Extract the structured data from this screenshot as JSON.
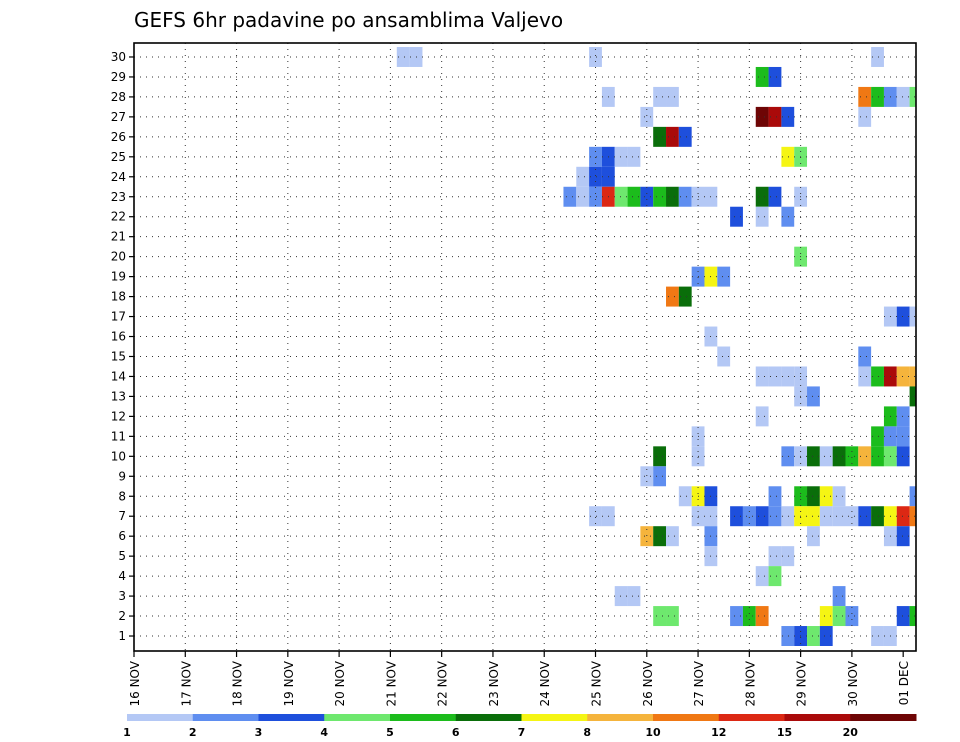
{
  "chart_data": {
    "type": "heatmap",
    "title": "GEFS 6hr padavine po ansamblima Valjevo",
    "xlabel": "",
    "ylabel": "",
    "x_ticks": [
      "16 NOV",
      "17 NOV",
      "18 NOV",
      "19 NOV",
      "20 NOV",
      "21 NOV",
      "22 NOV",
      "23 NOV",
      "24 NOV",
      "25 NOV",
      "26 NOV",
      "27 NOV",
      "28 NOV",
      "29 NOV",
      "30 NOV",
      "01 DEC"
    ],
    "y_ticks": [
      1,
      2,
      3,
      4,
      5,
      6,
      7,
      8,
      9,
      10,
      11,
      12,
      13,
      14,
      15,
      16,
      17,
      18,
      19,
      20,
      21,
      22,
      23,
      24,
      25,
      26,
      27,
      28,
      29,
      30
    ],
    "steps_per_day": 4,
    "x_range_steps": [
      0,
      61
    ],
    "grid": true,
    "legend_position": "bottom",
    "legend_levels": [
      "1",
      "2",
      "3",
      "4",
      "5",
      "6",
      "7",
      "8",
      "10",
      "12",
      "15",
      "20"
    ],
    "legend_colors": [
      "#b4c8f5",
      "#5f8ef0",
      "#1e4fdc",
      "#6ee86e",
      "#1cbc1c",
      "#0a6e0a",
      "#f5f514",
      "#f5b43c",
      "#f07814",
      "#dc2814",
      "#aa0a0a",
      "#6e0505"
    ],
    "cells_format": "[member, time_step_6h_from_16_NOV_00z, color_index]",
    "cells": [
      [
        30,
        21,
        0
      ],
      [
        30,
        22,
        0
      ],
      [
        30,
        36,
        0
      ],
      [
        30,
        58,
        0
      ],
      [
        29,
        49,
        4
      ],
      [
        29,
        50,
        2
      ],
      [
        28,
        37,
        0
      ],
      [
        28,
        41,
        0
      ],
      [
        28,
        42,
        0
      ],
      [
        28,
        57,
        8
      ],
      [
        28,
        58,
        4
      ],
      [
        28,
        59,
        1
      ],
      [
        28,
        60,
        0
      ],
      [
        28,
        61,
        3
      ],
      [
        27,
        40,
        0
      ],
      [
        27,
        49,
        11
      ],
      [
        27,
        50,
        10
      ],
      [
        27,
        51,
        2
      ],
      [
        27,
        57,
        0
      ],
      [
        26,
        41,
        5
      ],
      [
        26,
        42,
        10
      ],
      [
        26,
        43,
        2
      ],
      [
        25,
        36,
        1
      ],
      [
        25,
        37,
        2
      ],
      [
        25,
        38,
        0
      ],
      [
        25,
        39,
        0
      ],
      [
        25,
        51,
        6
      ],
      [
        25,
        52,
        3
      ],
      [
        24,
        35,
        0
      ],
      [
        24,
        36,
        2
      ],
      [
        24,
        37,
        2
      ],
      [
        23,
        34,
        1
      ],
      [
        23,
        35,
        0
      ],
      [
        23,
        36,
        1
      ],
      [
        23,
        37,
        9
      ],
      [
        23,
        38,
        3
      ],
      [
        23,
        39,
        4
      ],
      [
        23,
        40,
        2
      ],
      [
        23,
        41,
        4
      ],
      [
        23,
        42,
        5
      ],
      [
        23,
        43,
        1
      ],
      [
        23,
        44,
        0
      ],
      [
        23,
        45,
        0
      ],
      [
        23,
        49,
        5
      ],
      [
        23,
        50,
        2
      ],
      [
        23,
        52,
        0
      ],
      [
        22,
        47,
        2
      ],
      [
        22,
        49,
        0
      ],
      [
        22,
        51,
        1
      ],
      [
        20,
        52,
        3
      ],
      [
        19,
        44,
        1
      ],
      [
        19,
        45,
        6
      ],
      [
        19,
        46,
        1
      ],
      [
        18,
        42,
        8
      ],
      [
        18,
        43,
        5
      ],
      [
        17,
        59,
        0
      ],
      [
        17,
        60,
        2
      ],
      [
        17,
        61,
        0
      ],
      [
        16,
        45,
        0
      ],
      [
        15,
        46,
        0
      ],
      [
        15,
        57,
        1
      ],
      [
        14,
        49,
        0
      ],
      [
        14,
        50,
        0
      ],
      [
        14,
        51,
        0
      ],
      [
        14,
        52,
        0
      ],
      [
        14,
        57,
        0
      ],
      [
        14,
        58,
        4
      ],
      [
        14,
        59,
        10
      ],
      [
        14,
        60,
        7
      ],
      [
        14,
        61,
        7
      ],
      [
        13,
        52,
        0
      ],
      [
        13,
        53,
        1
      ],
      [
        13,
        61,
        5
      ],
      [
        12,
        49,
        0
      ],
      [
        12,
        59,
        4
      ],
      [
        12,
        60,
        1
      ],
      [
        11,
        44,
        0
      ],
      [
        11,
        58,
        4
      ],
      [
        11,
        59,
        1
      ],
      [
        11,
        60,
        1
      ],
      [
        10,
        41,
        5
      ],
      [
        10,
        44,
        0
      ],
      [
        10,
        51,
        1
      ],
      [
        10,
        52,
        0
      ],
      [
        10,
        53,
        5
      ],
      [
        10,
        54,
        0
      ],
      [
        10,
        55,
        5
      ],
      [
        10,
        56,
        4
      ],
      [
        10,
        57,
        7
      ],
      [
        10,
        58,
        4
      ],
      [
        10,
        59,
        3
      ],
      [
        10,
        60,
        2
      ],
      [
        9,
        40,
        0
      ],
      [
        9,
        41,
        1
      ],
      [
        8,
        43,
        0
      ],
      [
        8,
        44,
        6
      ],
      [
        8,
        45,
        2
      ],
      [
        8,
        50,
        1
      ],
      [
        8,
        52,
        4
      ],
      [
        8,
        53,
        5
      ],
      [
        8,
        54,
        6
      ],
      [
        8,
        55,
        0
      ],
      [
        8,
        61,
        1
      ],
      [
        7,
        36,
        0
      ],
      [
        7,
        37,
        0
      ],
      [
        7,
        44,
        0
      ],
      [
        7,
        45,
        0
      ],
      [
        7,
        47,
        2
      ],
      [
        7,
        48,
        1
      ],
      [
        7,
        49,
        2
      ],
      [
        7,
        50,
        1
      ],
      [
        7,
        51,
        0
      ],
      [
        7,
        52,
        6
      ],
      [
        7,
        53,
        6
      ],
      [
        7,
        54,
        0
      ],
      [
        7,
        55,
        0
      ],
      [
        7,
        56,
        0
      ],
      [
        7,
        57,
        2
      ],
      [
        7,
        58,
        5
      ],
      [
        7,
        59,
        6
      ],
      [
        7,
        60,
        9
      ],
      [
        7,
        61,
        8
      ],
      [
        6,
        40,
        7
      ],
      [
        6,
        41,
        5
      ],
      [
        6,
        42,
        0
      ],
      [
        6,
        45,
        1
      ],
      [
        6,
        53,
        0
      ],
      [
        6,
        59,
        0
      ],
      [
        6,
        60,
        2
      ],
      [
        5,
        45,
        0
      ],
      [
        5,
        50,
        0
      ],
      [
        5,
        51,
        0
      ],
      [
        4,
        49,
        0
      ],
      [
        4,
        50,
        3
      ],
      [
        3,
        38,
        0
      ],
      [
        3,
        39,
        0
      ],
      [
        3,
        55,
        1
      ],
      [
        2,
        41,
        3
      ],
      [
        2,
        42,
        3
      ],
      [
        2,
        47,
        1
      ],
      [
        2,
        48,
        4
      ],
      [
        2,
        49,
        8
      ],
      [
        2,
        54,
        6
      ],
      [
        2,
        55,
        3
      ],
      [
        2,
        56,
        1
      ],
      [
        2,
        60,
        2
      ],
      [
        2,
        61,
        4
      ],
      [
        1,
        51,
        1
      ],
      [
        1,
        52,
        2
      ],
      [
        1,
        53,
        3
      ],
      [
        1,
        54,
        2
      ],
      [
        1,
        58,
        0
      ],
      [
        1,
        59,
        0
      ]
    ]
  }
}
